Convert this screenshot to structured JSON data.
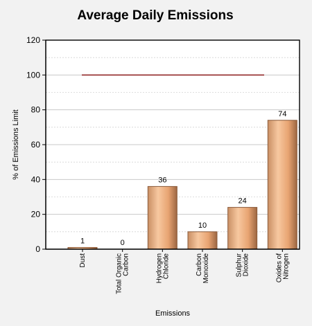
{
  "chart_data": {
    "type": "bar",
    "title": "Average Daily Emissions",
    "xlabel": "Emissions",
    "ylabel": "% of Emissions Limit",
    "ylim": [
      0,
      120
    ],
    "yticks": [
      0,
      20,
      40,
      60,
      80,
      100,
      120
    ],
    "grid": true,
    "legend": "none",
    "categories": [
      [
        "Dust"
      ],
      [
        "Total Organic",
        "Carbon"
      ],
      [
        "Hydrogen",
        "Chloride"
      ],
      [
        "Carbon",
        "Monoxide"
      ],
      [
        "Sulphur",
        "Dioxide"
      ],
      [
        "Oxides of",
        "Nitrogen"
      ]
    ],
    "values": [
      1,
      0,
      36,
      10,
      24,
      74
    ],
    "limit_line": 100,
    "colors": {
      "bar_light": "#f7c8a0",
      "bar_mid": "#e8a472",
      "bar_dark": "#8a5a3a",
      "limit_line": "#8b1a1a",
      "grid": "#c8c8c8",
      "plot_bg": "#ffffff"
    }
  }
}
